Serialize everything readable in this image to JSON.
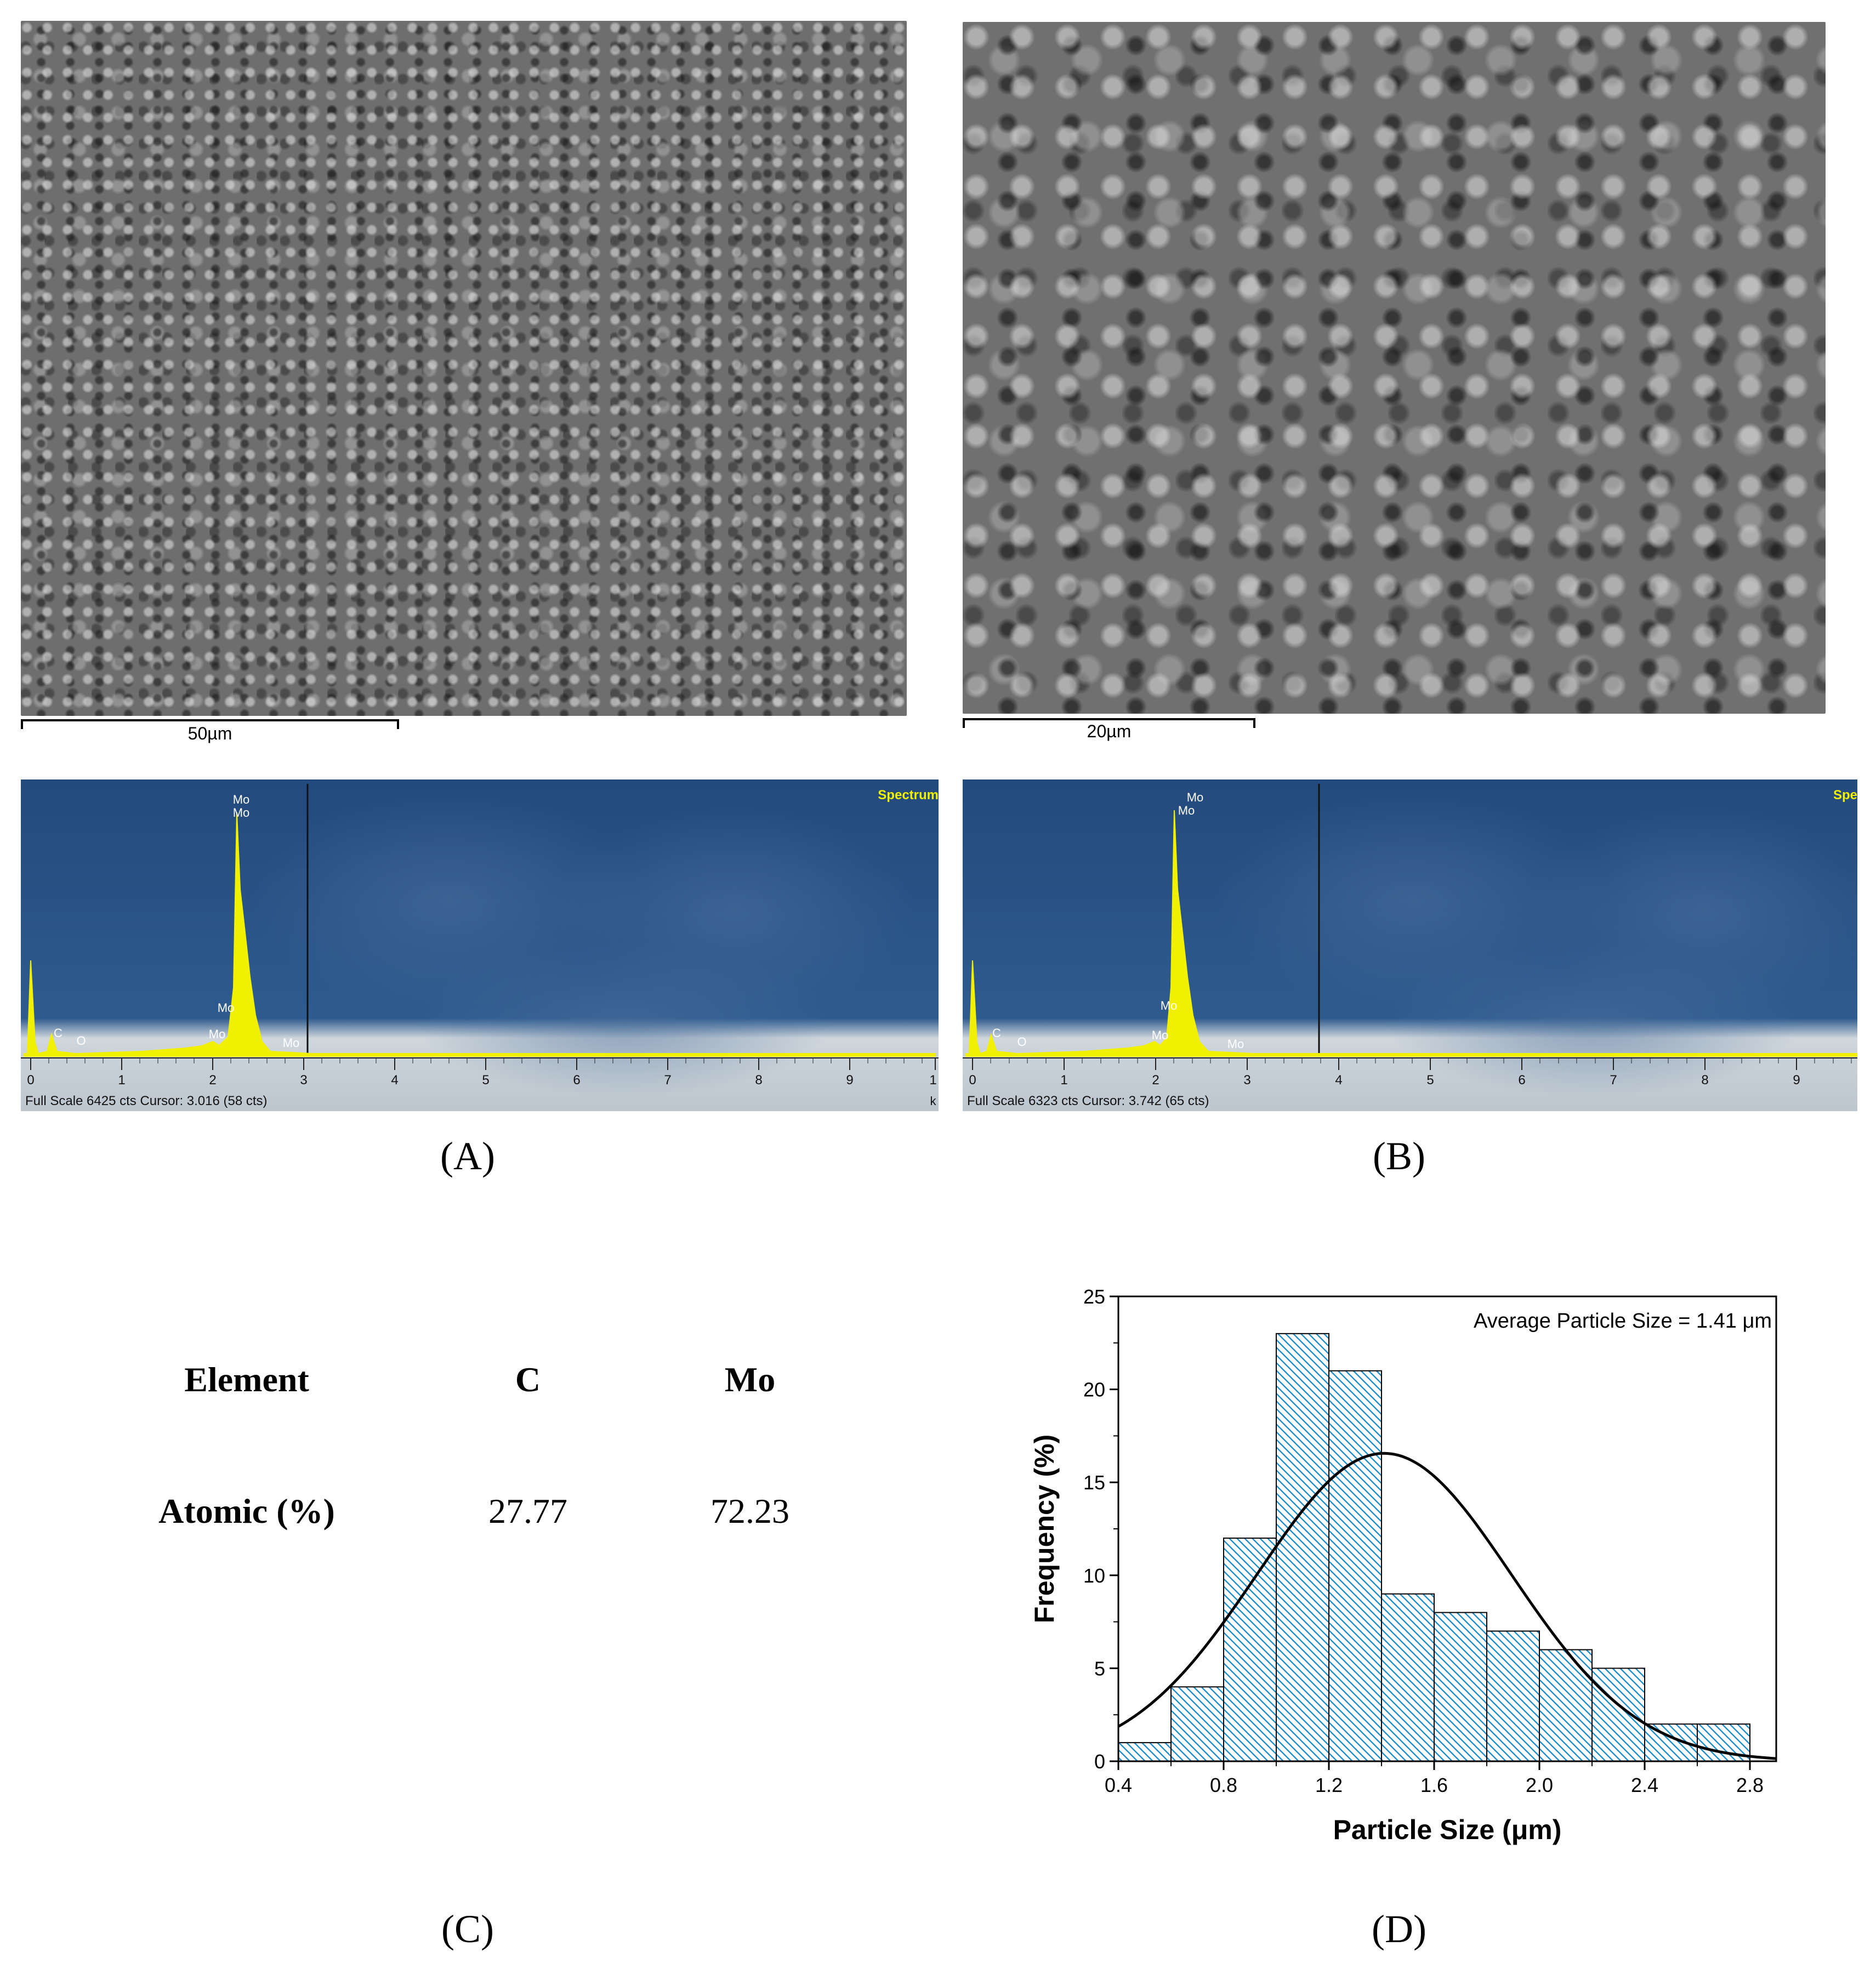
{
  "panelA": {
    "label": "(A)",
    "scale_bar": "50µm",
    "eds": {
      "spectrum_label": "Spectrum",
      "peaks": [
        "Mo",
        "Mo",
        "Mo",
        "Mo",
        "Mo",
        "C",
        "O"
      ],
      "axis_ticks": [
        "0",
        "1",
        "2",
        "3",
        "4",
        "5",
        "6",
        "7",
        "8",
        "9",
        "1"
      ],
      "axis_unit_fragment": "k",
      "footer": "Full Scale 6425 cts Cursor: 3.016  (58 cts)"
    }
  },
  "panelB": {
    "label": "(B)",
    "scale_bar": "20µm",
    "eds": {
      "spectrum_label": "Spe",
      "peaks": [
        "Mo",
        "Mo",
        "Mo",
        "Mo",
        "Mo",
        "C",
        "O"
      ],
      "axis_ticks": [
        "0",
        "1",
        "2",
        "3",
        "4",
        "5",
        "6",
        "7",
        "8",
        "9"
      ],
      "footer": "Full Scale 6323 cts Cursor: 3.742  (65 cts)"
    }
  },
  "panelC": {
    "label": "(C)",
    "table": {
      "headers": [
        "Element",
        "C",
        "Mo"
      ],
      "row": [
        "Atomic (%)",
        "27.77",
        "72.23"
      ]
    }
  },
  "panelD": {
    "label": "(D)",
    "chart_data": {
      "type": "bar",
      "bin_edges": [
        0.4,
        0.6,
        0.8,
        1.0,
        1.2,
        1.4,
        1.6,
        1.8,
        2.0,
        2.2,
        2.4,
        2.6,
        2.8
      ],
      "values": [
        1,
        4,
        12,
        23,
        21,
        9,
        8,
        7,
        6,
        5,
        2,
        2
      ],
      "fit": {
        "type": "normal",
        "mean": 1.41
      },
      "annotation": "Average Particle Size = 1.41 μm",
      "xlabel": "Particle Size (μm)",
      "ylabel": "Frequency (%)",
      "xlim": [
        0.4,
        2.9
      ],
      "ylim": [
        0,
        25
      ],
      "xticks": [
        "0.4",
        "0.8",
        "1.2",
        "1.6",
        "2.0",
        "2.4",
        "2.8"
      ],
      "yticks": [
        "0",
        "5",
        "10",
        "15",
        "20",
        "25"
      ],
      "bar_color": "#1f8fc8",
      "fill_pattern": "diagonal-hatch",
      "grid": false
    }
  }
}
